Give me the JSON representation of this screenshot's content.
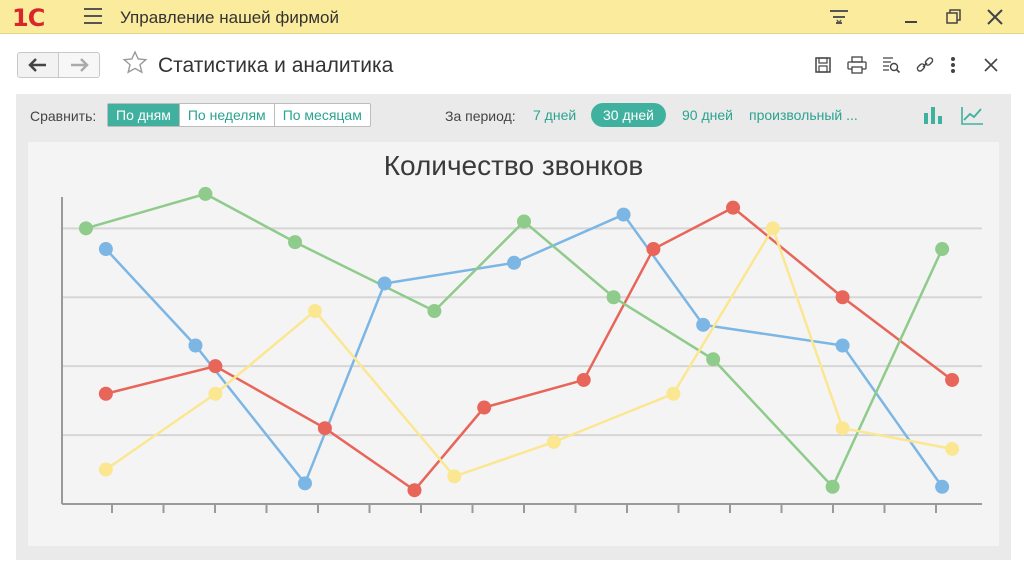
{
  "app": {
    "logo": "1С",
    "title": "Управление нашей фирмой"
  },
  "page": {
    "title": "Статистика и аналитика"
  },
  "filters": {
    "compare_label": "Сравнить:",
    "compare_options": [
      "По дням",
      "По неделям",
      "По месяцам"
    ],
    "compare_selected": "По дням",
    "period_label": "За период:",
    "periods": [
      "7 дней",
      "30 дней",
      "90 дней",
      "произвольный ..."
    ],
    "period_selected": "30 дней"
  },
  "colors": {
    "accent": "#40b19e",
    "red": "#e8655a",
    "blue": "#7cb6e4",
    "green": "#8fcb8a",
    "yellow": "#fbe792"
  },
  "chart_data": {
    "type": "line",
    "title": "Количество звонков",
    "xlabel": "",
    "ylabel": "",
    "ylim": [
      0,
      4
    ],
    "grid": true,
    "legend": "none",
    "series": [
      {
        "color": "red",
        "points": [
          [
            0.3,
            1.6
          ],
          [
            1.4,
            2.0
          ],
          [
            2.5,
            1.1
          ],
          [
            3.4,
            0.2
          ],
          [
            4.1,
            1.4
          ],
          [
            5.1,
            1.8
          ],
          [
            5.8,
            3.7
          ],
          [
            6.6,
            4.3
          ],
          [
            7.7,
            3.0
          ],
          [
            8.8,
            1.8
          ]
        ]
      },
      {
        "color": "blue",
        "points": [
          [
            0.3,
            3.7
          ],
          [
            1.2,
            2.3
          ],
          [
            2.3,
            0.3
          ],
          [
            3.1,
            3.2
          ],
          [
            4.4,
            3.5
          ],
          [
            5.5,
            4.2
          ],
          [
            6.3,
            2.6
          ],
          [
            7.7,
            2.3
          ],
          [
            8.7,
            0.25
          ]
        ]
      },
      {
        "color": "green",
        "points": [
          [
            0.1,
            4.0
          ],
          [
            1.3,
            4.5
          ],
          [
            2.2,
            3.8
          ],
          [
            3.6,
            2.8
          ],
          [
            4.5,
            4.1
          ],
          [
            5.4,
            3.0
          ],
          [
            6.4,
            2.1
          ],
          [
            7.6,
            0.25
          ],
          [
            8.7,
            3.7
          ]
        ]
      },
      {
        "color": "yellow",
        "points": [
          [
            0.3,
            0.5
          ],
          [
            1.4,
            1.6
          ],
          [
            2.4,
            2.8
          ],
          [
            3.8,
            0.4
          ],
          [
            4.8,
            0.9
          ],
          [
            6.0,
            1.6
          ],
          [
            7.0,
            4.0
          ],
          [
            7.7,
            1.1
          ],
          [
            8.8,
            0.8
          ]
        ]
      }
    ]
  }
}
